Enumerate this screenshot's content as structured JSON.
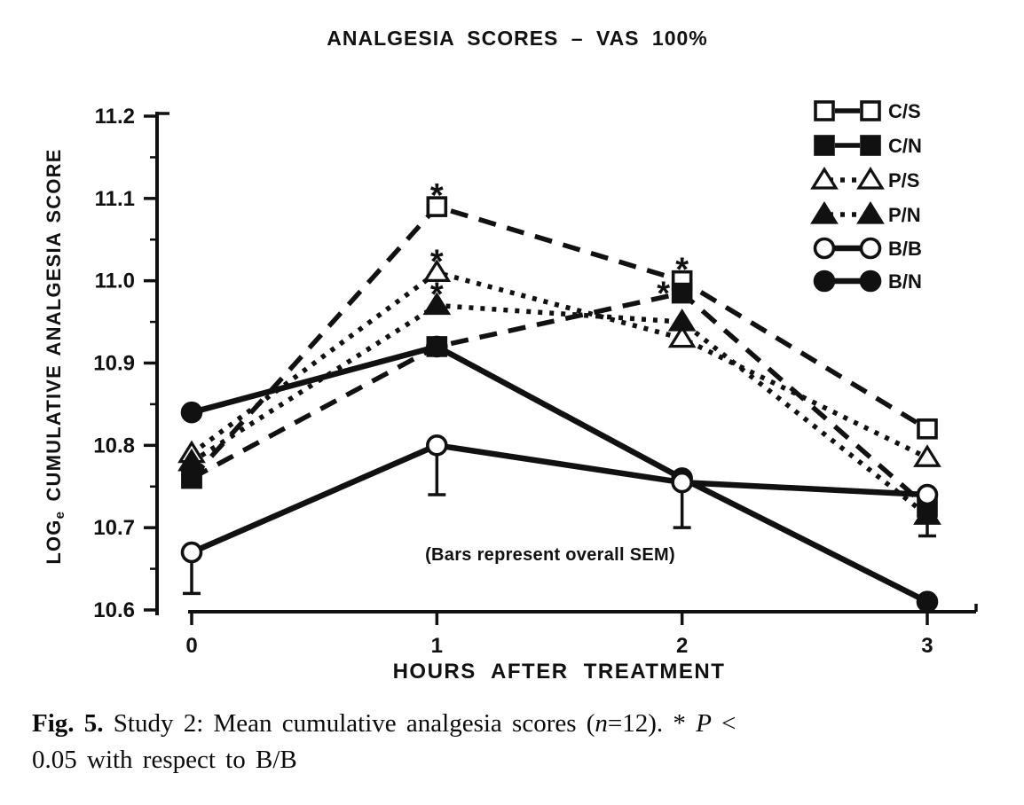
{
  "colors": {
    "ink": "#111111",
    "paper": "#ffffff"
  },
  "chart_data": {
    "type": "line",
    "title": "ANALGESIA SCORES – VAS 100%",
    "xlabel": "HOURS AFTER TREATMENT",
    "ylabel": "LOGe CUMULATIVE ANALGESIA SCORE",
    "ylabel_parts": {
      "base": "LOG",
      "sub": "e",
      "rest": " CUMULATIVE ANALGESIA SCORE"
    },
    "annotation": "(Bars represent overall SEM)",
    "x": [
      0,
      1,
      2,
      3
    ],
    "xlim": [
      0,
      3
    ],
    "ylim": [
      10.6,
      11.2
    ],
    "xticks": [
      "0",
      "1",
      "2",
      "3"
    ],
    "yticks": [
      "11.2",
      "11.1",
      "11.0",
      "10.9",
      "10.8",
      "10.7",
      "10.6"
    ],
    "ytick_minor_step": 0.05,
    "grid": false,
    "legend_position": "top-right",
    "series": [
      {
        "name": "C/S",
        "marker": "open-square",
        "line": "dash",
        "values": [
          10.76,
          11.09,
          11.0,
          10.82
        ],
        "asterisks": [
          {
            "i": 1,
            "placement": "above"
          },
          {
            "i": 2,
            "placement": "above"
          }
        ]
      },
      {
        "name": "C/N",
        "marker": "filled-square",
        "line": "dash",
        "values": [
          10.76,
          10.92,
          10.985,
          10.725
        ],
        "asterisks": [
          {
            "i": 2,
            "placement": "left"
          }
        ]
      },
      {
        "name": "P/S",
        "marker": "open-triangle",
        "line": "dot",
        "values": [
          10.79,
          11.01,
          10.93,
          10.785
        ],
        "asterisks": [
          {
            "i": 1,
            "placement": "above"
          }
        ]
      },
      {
        "name": "P/N",
        "marker": "filled-triangle",
        "line": "dot",
        "values": [
          10.78,
          10.97,
          10.95,
          10.715
        ],
        "asterisks": [
          {
            "i": 1,
            "placement": "above"
          }
        ]
      },
      {
        "name": "B/B",
        "marker": "open-circle",
        "line": "solid",
        "values": [
          10.67,
          10.8,
          10.755,
          10.74
        ],
        "sem_low": [
          10.62,
          10.74,
          10.7,
          10.69
        ]
      },
      {
        "name": "B/N",
        "marker": "filled-circle",
        "line": "solid",
        "values": [
          10.84,
          10.92,
          10.76,
          10.61
        ]
      }
    ]
  },
  "caption": {
    "fig_label": "Fig. 5.",
    "part1": " Study 2: Mean cumulative analgesia scores (",
    "italic_n": "n",
    "part2": "=12). * ",
    "italic_p": "P",
    "part3": " <",
    "line2": "0.05 with respect to B/B"
  }
}
